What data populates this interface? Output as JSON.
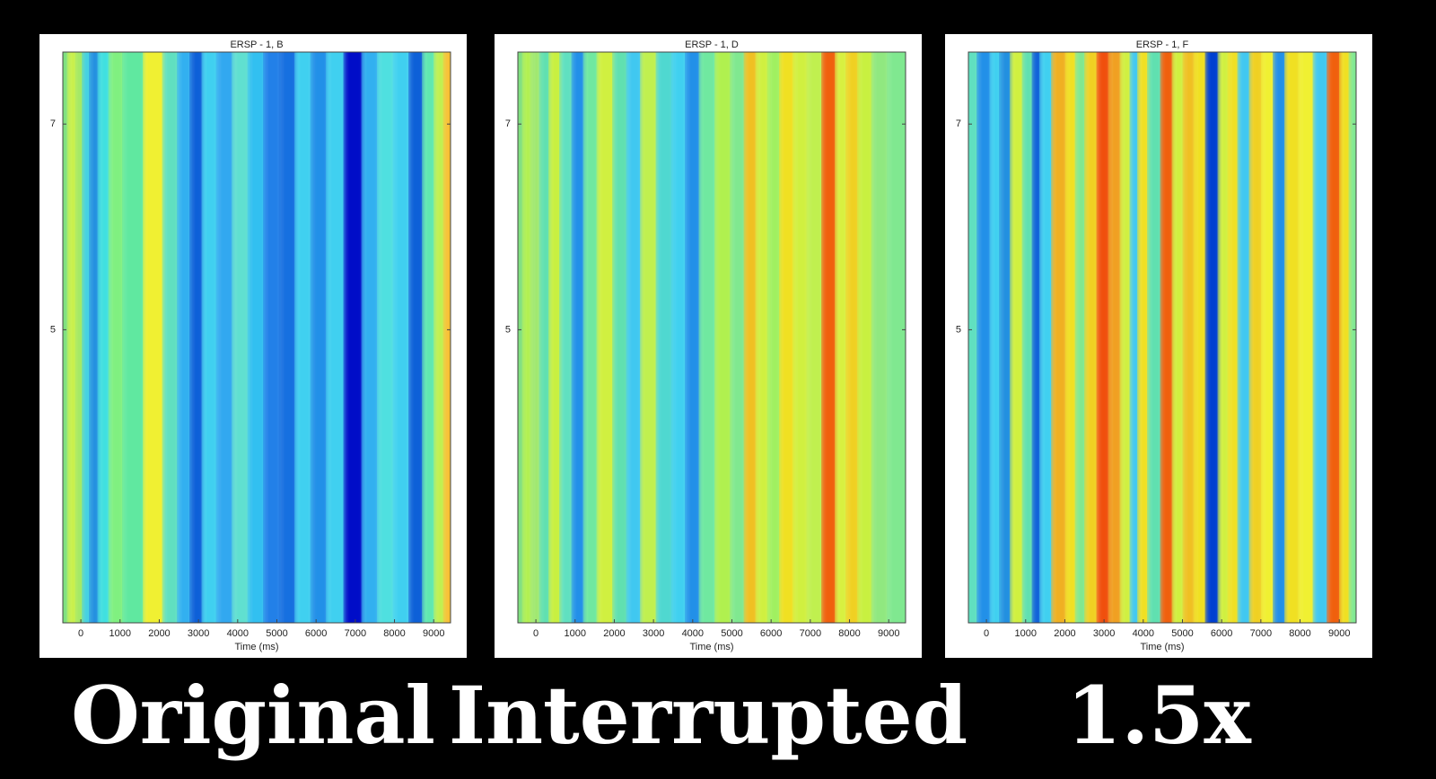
{
  "chart_data": [
    {
      "type": "heatmap",
      "title": "ERSP - 1, B",
      "xlabel": "Time (ms)",
      "caption": "Original",
      "xlim": [
        -460,
        9430
      ],
      "ylim": [
        2.15,
        7.7
      ],
      "xticks": [
        0,
        1000,
        2000,
        3000,
        4000,
        5000,
        6000,
        7000,
        8000,
        9000
      ],
      "yticks": [
        5,
        7
      ],
      "x": [
        -400,
        -200,
        0,
        150,
        350,
        600,
        900,
        1300,
        1950,
        2300,
        2700,
        2950,
        3300,
        3700,
        4100,
        4500,
        4900,
        5300,
        5700,
        6100,
        6500,
        7000,
        7400,
        7800,
        8200,
        8600,
        8900,
        9200,
        9380
      ],
      "colors": [
        "#7fe07f",
        "#c8f04a",
        "#a0e860",
        "#40d0e0",
        "#2090e0",
        "#40e0e0",
        "#80f080",
        "#60e8a0",
        "#f0f030",
        "#60e0c0",
        "#30b0f0",
        "#1060d8",
        "#40d0f0",
        "#30a8f0",
        "#60e0d0",
        "#30c0f0",
        "#2080e8",
        "#1870e0",
        "#40d0f0",
        "#2090e8",
        "#40d0f0",
        "#0010c8",
        "#30b0f0",
        "#50e0e0",
        "#40d0f0",
        "#1060d8",
        "#60e8b0",
        "#c0f050",
        "#f8c030"
      ]
    },
    {
      "type": "heatmap",
      "title": "ERSP - 1, D",
      "xlabel": "Time (ms)",
      "caption": "Interrupted",
      "xlim": [
        -460,
        9430
      ],
      "ylim": [
        2.15,
        7.7
      ],
      "xticks": [
        0,
        1000,
        2000,
        3000,
        4000,
        5000,
        6000,
        7000,
        8000,
        9000
      ],
      "yticks": [
        5,
        7
      ],
      "x": [
        -400,
        -200,
        0,
        250,
        500,
        800,
        1100,
        1400,
        1800,
        2200,
        2500,
        2900,
        3300,
        3700,
        4000,
        4400,
        4800,
        5200,
        5500,
        5800,
        6100,
        6400,
        6800,
        7100,
        7550,
        7800,
        8100,
        8400,
        8800,
        9200
      ],
      "colors": [
        "#80e080",
        "#b0f050",
        "#a0e870",
        "#60e0b0",
        "#c8f040",
        "#60e0c0",
        "#2090e8",
        "#70e8a0",
        "#d0f040",
        "#60e0b0",
        "#40c8f0",
        "#c0f050",
        "#50d8d0",
        "#40d0f0",
        "#2090e8",
        "#70e8a0",
        "#b0f050",
        "#80e890",
        "#f0c020",
        "#d0f040",
        "#a0f060",
        "#f0e020",
        "#d0f040",
        "#c0f050",
        "#f06010",
        "#d8f040",
        "#f0d020",
        "#c8f040",
        "#90e880",
        "#80e890"
      ]
    },
    {
      "type": "heatmap",
      "title": "ERSP - 1, F",
      "xlabel": "Time (ms)",
      "caption": "1.5x",
      "xlim": [
        -460,
        9430
      ],
      "ylim": [
        2.15,
        7.7
      ],
      "xticks": [
        0,
        1000,
        2000,
        3000,
        4000,
        5000,
        6000,
        7000,
        8000,
        9000
      ],
      "yticks": [
        5,
        7
      ],
      "x": [
        -400,
        0,
        250,
        500,
        800,
        1100,
        1300,
        1500,
        1900,
        2200,
        2400,
        2700,
        3000,
        3300,
        3600,
        3800,
        4000,
        4300,
        4650,
        4900,
        5200,
        5450,
        5800,
        6100,
        6300,
        6600,
        6900,
        7200,
        7500,
        7800,
        8200,
        8550,
        8900,
        9200,
        9380
      ],
      "colors": [
        "#60e0c0",
        "#2090e8",
        "#40d0f0",
        "#2090e0",
        "#d0f040",
        "#60e0b0",
        "#1060d8",
        "#40d0f0",
        "#f0b020",
        "#f0e020",
        "#80e890",
        "#f0d020",
        "#f05010",
        "#f0a020",
        "#d0f040",
        "#40c8f0",
        "#f0e020",
        "#60e0b0",
        "#f06010",
        "#d0f040",
        "#f0c020",
        "#f0e020",
        "#0040d0",
        "#d0f040",
        "#f0e020",
        "#40c8f0",
        "#f0d020",
        "#f0f030",
        "#2090e8",
        "#f0e020",
        "#f0f030",
        "#40c8f0",
        "#f06010",
        "#f0e020",
        "#80e890"
      ]
    }
  ]
}
